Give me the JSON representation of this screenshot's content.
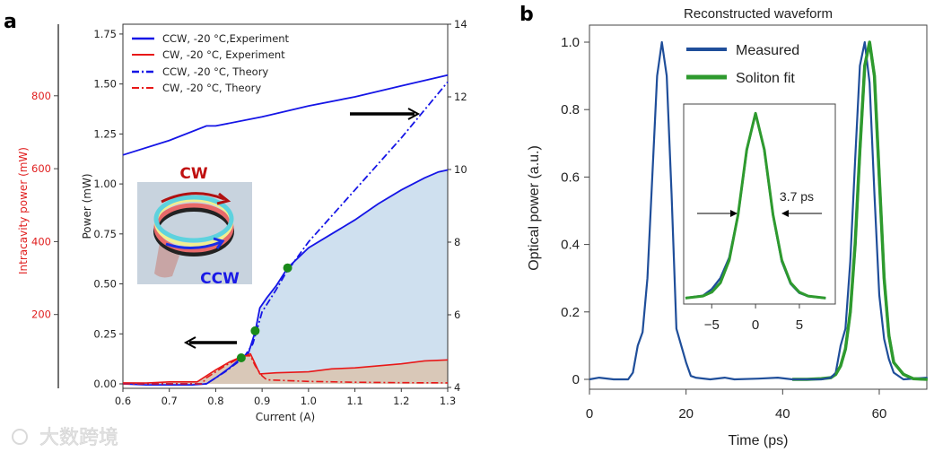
{
  "watermark": "大数跨境",
  "chart_data": [
    {
      "panel": "a",
      "type": "line",
      "xlabel": "Current (A)",
      "ylabel": "Power (mW)",
      "ylabel_far_left": "Intracavity power (mW)",
      "xlim": [
        0.6,
        1.3
      ],
      "ylim": [
        0,
        1.75
      ],
      "y2lim": [
        4,
        14
      ],
      "y3lim": [
        0,
        1000
      ],
      "xticks": [
        "0.6",
        "0.7",
        "0.8",
        "0.9",
        "1.0",
        "1.1",
        "1.2",
        "1.3"
      ],
      "yticks": [
        "0.00",
        "0.25",
        "0.50",
        "0.75",
        "1.00",
        "1.25",
        "1.50",
        "1.75"
      ],
      "y2ticks": [
        "4",
        "6",
        "8",
        "10",
        "12",
        "14"
      ],
      "y3ticks": [
        "200",
        "400",
        "600",
        "800"
      ],
      "legend": [
        "CCW, -20 °C,Experiment",
        "CW, -20 °C, Experiment",
        "CCW, -20 °C, Theory",
        "CW, -20 °C, Theory"
      ],
      "legend_position": "top-left",
      "colors": {
        "ccw": "#1515e6",
        "cw": "#e81818",
        "ccw_fill": "#cfe0ef",
        "cw_fill": "#d9c8b8",
        "marker": "#1a8a1a"
      },
      "series": [
        {
          "name": "CCW, -20 °C,Experiment",
          "axis": "left",
          "style": "solid",
          "x": [
            0.6,
            0.65,
            0.7,
            0.75,
            0.78,
            0.8,
            0.83,
            0.85,
            0.87,
            0.885,
            0.895,
            0.91,
            0.93,
            0.955,
            1.0,
            1.05,
            1.1,
            1.15,
            1.2,
            1.25,
            1.28,
            1.3
          ],
          "y": [
            0.0,
            -0.005,
            -0.005,
            -0.005,
            0.0,
            0.03,
            0.08,
            0.12,
            0.15,
            0.26,
            0.38,
            0.43,
            0.49,
            0.58,
            0.68,
            0.75,
            0.82,
            0.9,
            0.97,
            1.03,
            1.06,
            1.07
          ]
        },
        {
          "name": "CW, -20 °C, Experiment",
          "axis": "left",
          "style": "solid",
          "x": [
            0.6,
            0.65,
            0.7,
            0.76,
            0.78,
            0.8,
            0.83,
            0.85,
            0.875,
            0.885,
            0.895,
            0.93,
            1.0,
            1.05,
            1.1,
            1.15,
            1.2,
            1.25,
            1.3
          ],
          "y": [
            0.005,
            0.004,
            0.01,
            0.01,
            0.04,
            0.07,
            0.11,
            0.13,
            0.15,
            0.1,
            0.05,
            0.055,
            0.06,
            0.075,
            0.08,
            0.09,
            0.1,
            0.115,
            0.12
          ]
        },
        {
          "name": "CCW, -20 °C, Theory",
          "axis": "left",
          "style": "dashdot",
          "x": [
            0.6,
            0.7,
            0.78,
            0.82,
            0.86,
            0.88,
            0.9,
            0.93,
            0.95,
            1.0,
            1.1,
            1.2,
            1.3
          ],
          "y": [
            0.0,
            0.0,
            0.0,
            0.06,
            0.13,
            0.2,
            0.36,
            0.47,
            0.55,
            0.71,
            0.97,
            1.23,
            1.51
          ]
        },
        {
          "name": "CW, -20 °C, Theory",
          "axis": "left",
          "style": "dashdot",
          "x": [
            0.6,
            0.7,
            0.77,
            0.78,
            0.82,
            0.86,
            0.875,
            0.885,
            0.9,
            0.91,
            1.0,
            1.1,
            1.2,
            1.3
          ],
          "y": [
            0.0,
            0.0,
            0.0,
            0.03,
            0.09,
            0.14,
            0.14,
            0.09,
            0.04,
            0.02,
            0.012,
            0.008,
            0.006,
            0.005
          ]
        },
        {
          "name": "CCW intracavity",
          "axis": "right",
          "style": "solid",
          "x": [
            0.6,
            0.7,
            0.78,
            0.8,
            0.9,
            1.0,
            1.1,
            1.2,
            1.3
          ],
          "y": [
            10.4,
            10.8,
            11.2,
            11.2,
            11.45,
            11.75,
            12.0,
            12.3,
            12.6
          ]
        }
      ],
      "markers": {
        "x": [
          0.855,
          0.885,
          0.955
        ],
        "y": [
          0.13,
          0.265,
          0.58
        ]
      },
      "inset_labels": {
        "cw": "CW",
        "ccw": "CCW"
      }
    },
    {
      "panel": "b",
      "type": "line",
      "title": "Reconstructed waveform",
      "xlabel": "Time (ps)",
      "ylabel": "Optical power (a.u.)",
      "xlim": [
        0,
        70
      ],
      "ylim": [
        -0.05,
        1.05
      ],
      "xticks": [
        "0",
        "20",
        "40",
        "60"
      ],
      "yticks": [
        "0",
        "0.2",
        "0.4",
        "0.6",
        "0.8",
        "1.0"
      ],
      "legend": [
        "Measured",
        "Soliton fit"
      ],
      "legend_position": "top-center",
      "colors": {
        "measured": "#1f4e9a",
        "fit": "#2e9a2e"
      },
      "series": [
        {
          "name": "Measured",
          "x": [
            0,
            2,
            5,
            8,
            9,
            10,
            11,
            12,
            13,
            14,
            15,
            16,
            17,
            18,
            19,
            20,
            21,
            22,
            25,
            28,
            30,
            35,
            39,
            42,
            45,
            48,
            50,
            51,
            52,
            53,
            54,
            55,
            56,
            57,
            58,
            59,
            60,
            61,
            62,
            63,
            65,
            70
          ],
          "y": [
            0,
            0.005,
            0,
            0,
            0.02,
            0.1,
            0.14,
            0.3,
            0.6,
            0.9,
            1.0,
            0.9,
            0.55,
            0.15,
            0.1,
            0.05,
            0.01,
            0.005,
            0,
            0.005,
            0,
            0.002,
            0.005,
            0,
            0,
            0,
            0.005,
            0.02,
            0.1,
            0.15,
            0.35,
            0.65,
            0.93,
            1.0,
            0.88,
            0.55,
            0.25,
            0.12,
            0.06,
            0.02,
            0,
            0.005
          ]
        },
        {
          "name": "Soliton fit",
          "x": [
            42,
            45,
            48,
            50,
            51,
            52,
            53,
            54,
            55,
            56,
            57,
            58,
            59,
            60,
            61,
            62,
            63,
            65,
            67,
            70
          ],
          "y": [
            0,
            0,
            0.002,
            0.005,
            0.015,
            0.04,
            0.09,
            0.2,
            0.4,
            0.68,
            0.93,
            1.0,
            0.9,
            0.6,
            0.3,
            0.13,
            0.05,
            0.015,
            0.002,
            0
          ]
        }
      ],
      "inset": {
        "xlim": [
          -8.2,
          9.1
        ],
        "ylim": [
          -0.03,
          1.05
        ],
        "xticks": [
          "−5",
          "0",
          "5"
        ],
        "annotation": "3.7 ps",
        "series": [
          {
            "name": "Measured",
            "x": [
              -8,
              -6,
              -5,
              -4,
              -3,
              -2,
              -1,
              0,
              1,
              2,
              3,
              4,
              5,
              6,
              8
            ],
            "y": [
              0.002,
              0.015,
              0.05,
              0.11,
              0.22,
              0.45,
              0.8,
              1.0,
              0.8,
              0.45,
              0.2,
              0.08,
              0.03,
              0.012,
              0.002
            ]
          },
          {
            "name": "Soliton fit",
            "x": [
              -8,
              -6,
              -5,
              -4,
              -3,
              -2,
              -1,
              0,
              1,
              2,
              3,
              4,
              5,
              6,
              8
            ],
            "y": [
              0.002,
              0.013,
              0.034,
              0.085,
              0.207,
              0.452,
              0.804,
              1.0,
              0.804,
              0.452,
              0.207,
              0.085,
              0.034,
              0.013,
              0.002
            ]
          }
        ]
      }
    }
  ],
  "labels": {
    "a": "a",
    "b": "b"
  }
}
